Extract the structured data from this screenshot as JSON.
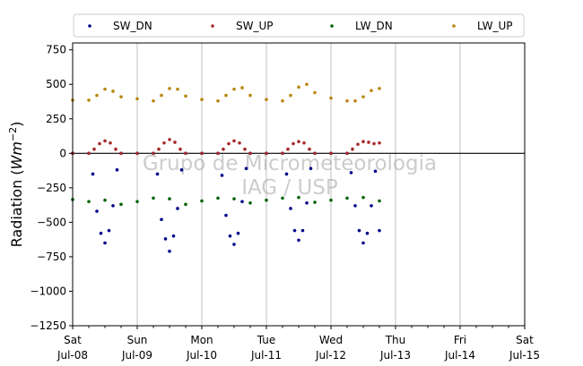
{
  "chart_data": {
    "type": "scatter",
    "ylabel": "Radiation (Wm⁻²)",
    "ylabel_parts": {
      "prefix": "Radiation (",
      "unit_var": "Wm",
      "exponent": "−2",
      "suffix": ")"
    },
    "ylim": [
      -1250,
      800
    ],
    "xlim": [
      "2017-07-08",
      "2017-07-15"
    ],
    "yticks": [
      -1250,
      -1000,
      -750,
      -500,
      -250,
      0,
      250,
      500,
      750
    ],
    "ytick_labels": [
      "−1250",
      "−1000",
      "−750",
      "−500",
      "−250",
      "0",
      "250",
      "500",
      "750"
    ],
    "xticks": [
      {
        "date": "2017-07-08",
        "day": "Sat",
        "label": "Jul-08"
      },
      {
        "date": "2017-07-09",
        "day": "Sun",
        "label": "Jul-09"
      },
      {
        "date": "2017-07-10",
        "day": "Mon",
        "label": "Jul-10"
      },
      {
        "date": "2017-07-11",
        "day": "Tue",
        "label": "Jul-11"
      },
      {
        "date": "2017-07-12",
        "day": "Wed",
        "label": "Jul-12"
      },
      {
        "date": "2017-07-13",
        "day": "Thu",
        "label": "Jul-13"
      },
      {
        "date": "2017-07-14",
        "day": "Fri",
        "label": "Jul-14"
      },
      {
        "date": "2017-07-15",
        "day": "Sat",
        "label": "Jul-15"
      }
    ],
    "grid": "vertical",
    "hline": 0,
    "legend": {
      "placement": "top",
      "columns": 4
    },
    "watermark": [
      "Grupo de Micrometeorologia",
      "IAG / USP"
    ],
    "series": [
      {
        "name": "SW_DN",
        "color": "#00008b",
        "x": [
          "2017-07-08 00:00",
          "2017-07-08 06:00",
          "2017-07-08 07:30",
          "2017-07-08 09:00",
          "2017-07-08 10:30",
          "2017-07-08 12:00",
          "2017-07-08 13:30",
          "2017-07-08 15:00",
          "2017-07-08 16:30",
          "2017-07-08 18:00",
          "2017-07-09 00:00",
          "2017-07-09 06:00",
          "2017-07-09 07:30",
          "2017-07-09 09:00",
          "2017-07-09 10:30",
          "2017-07-09 12:00",
          "2017-07-09 13:30",
          "2017-07-09 15:00",
          "2017-07-09 16:30",
          "2017-07-09 18:00",
          "2017-07-10 00:00",
          "2017-07-10 06:00",
          "2017-07-10 07:30",
          "2017-07-10 09:00",
          "2017-07-10 10:30",
          "2017-07-10 12:00",
          "2017-07-10 13:30",
          "2017-07-10 15:00",
          "2017-07-10 16:30",
          "2017-07-10 18:00",
          "2017-07-11 00:00",
          "2017-07-11 06:00",
          "2017-07-11 07:30",
          "2017-07-11 09:00",
          "2017-07-11 10:30",
          "2017-07-11 12:00",
          "2017-07-11 13:30",
          "2017-07-11 15:00",
          "2017-07-11 16:30",
          "2017-07-11 18:00",
          "2017-07-12 00:00",
          "2017-07-12 06:00",
          "2017-07-12 07:30",
          "2017-07-12 09:00",
          "2017-07-12 10:30",
          "2017-07-12 12:00",
          "2017-07-12 13:30",
          "2017-07-12 15:00",
          "2017-07-12 16:30",
          "2017-07-12 18:00"
        ],
        "y": [
          0,
          0,
          -150,
          -420,
          -580,
          -650,
          -560,
          -380,
          -120,
          0,
          0,
          0,
          -150,
          -480,
          -620,
          -710,
          -600,
          -400,
          -120,
          0,
          0,
          0,
          -160,
          -450,
          -600,
          -660,
          -580,
          -350,
          -110,
          0,
          0,
          0,
          -150,
          -400,
          -560,
          -630,
          -560,
          -360,
          -110,
          0,
          0,
          0,
          -140,
          -380,
          -560,
          -650,
          -580,
          -380,
          -130,
          -560
        ]
      },
      {
        "name": "SW_UP",
        "color": "#a52a2a",
        "x": [
          "2017-07-08 00:00",
          "2017-07-08 06:00",
          "2017-07-08 08:00",
          "2017-07-08 10:00",
          "2017-07-08 12:00",
          "2017-07-08 14:00",
          "2017-07-08 16:00",
          "2017-07-08 18:00",
          "2017-07-09 00:00",
          "2017-07-09 06:00",
          "2017-07-09 08:00",
          "2017-07-09 10:00",
          "2017-07-09 12:00",
          "2017-07-09 14:00",
          "2017-07-09 16:00",
          "2017-07-09 18:00",
          "2017-07-10 00:00",
          "2017-07-10 06:00",
          "2017-07-10 08:00",
          "2017-07-10 10:00",
          "2017-07-10 12:00",
          "2017-07-10 14:00",
          "2017-07-10 16:00",
          "2017-07-10 18:00",
          "2017-07-11 00:00",
          "2017-07-11 06:00",
          "2017-07-11 08:00",
          "2017-07-11 10:00",
          "2017-07-11 12:00",
          "2017-07-11 14:00",
          "2017-07-11 16:00",
          "2017-07-11 18:00",
          "2017-07-12 00:00",
          "2017-07-12 06:00",
          "2017-07-12 08:00",
          "2017-07-12 10:00",
          "2017-07-12 12:00",
          "2017-07-12 14:00",
          "2017-07-12 16:00",
          "2017-07-12 18:00"
        ],
        "y": [
          0,
          0,
          30,
          70,
          90,
          75,
          30,
          0,
          0,
          0,
          30,
          75,
          100,
          80,
          30,
          0,
          0,
          0,
          30,
          70,
          90,
          75,
          30,
          0,
          0,
          0,
          30,
          70,
          85,
          75,
          30,
          0,
          0,
          0,
          30,
          65,
          85,
          80,
          70,
          75
        ]
      },
      {
        "name": "LW_DN",
        "color": "#006400",
        "x": [
          "2017-07-08 00:00",
          "2017-07-08 06:00",
          "2017-07-08 12:00",
          "2017-07-08 18:00",
          "2017-07-09 00:00",
          "2017-07-09 06:00",
          "2017-07-09 12:00",
          "2017-07-09 18:00",
          "2017-07-10 00:00",
          "2017-07-10 06:00",
          "2017-07-10 12:00",
          "2017-07-10 18:00",
          "2017-07-11 00:00",
          "2017-07-11 06:00",
          "2017-07-11 12:00",
          "2017-07-11 18:00",
          "2017-07-12 00:00",
          "2017-07-12 06:00",
          "2017-07-12 12:00",
          "2017-07-12 18:00"
        ],
        "y": [
          -335,
          -350,
          -340,
          -370,
          -350,
          -325,
          -330,
          -370,
          -345,
          -325,
          -330,
          -360,
          -340,
          -325,
          -320,
          -355,
          -340,
          -325,
          -320,
          -345
        ]
      },
      {
        "name": "LW_UP",
        "color": "#b8860b",
        "x": [
          "2017-07-08 00:00",
          "2017-07-08 06:00",
          "2017-07-08 09:00",
          "2017-07-08 12:00",
          "2017-07-08 15:00",
          "2017-07-08 18:00",
          "2017-07-09 00:00",
          "2017-07-09 06:00",
          "2017-07-09 09:00",
          "2017-07-09 12:00",
          "2017-07-09 15:00",
          "2017-07-09 18:00",
          "2017-07-10 00:00",
          "2017-07-10 06:00",
          "2017-07-10 09:00",
          "2017-07-10 12:00",
          "2017-07-10 15:00",
          "2017-07-10 18:00",
          "2017-07-11 00:00",
          "2017-07-11 06:00",
          "2017-07-11 09:00",
          "2017-07-11 12:00",
          "2017-07-11 15:00",
          "2017-07-11 18:00",
          "2017-07-12 00:00",
          "2017-07-12 06:00",
          "2017-07-12 09:00",
          "2017-07-12 12:00",
          "2017-07-12 15:00",
          "2017-07-12 18:00"
        ],
        "y": [
          385,
          385,
          420,
          465,
          450,
          410,
          395,
          380,
          420,
          470,
          465,
          415,
          390,
          380,
          420,
          465,
          475,
          420,
          390,
          380,
          420,
          480,
          500,
          440,
          400,
          380,
          380,
          410,
          455,
          470
        ]
      }
    ]
  }
}
